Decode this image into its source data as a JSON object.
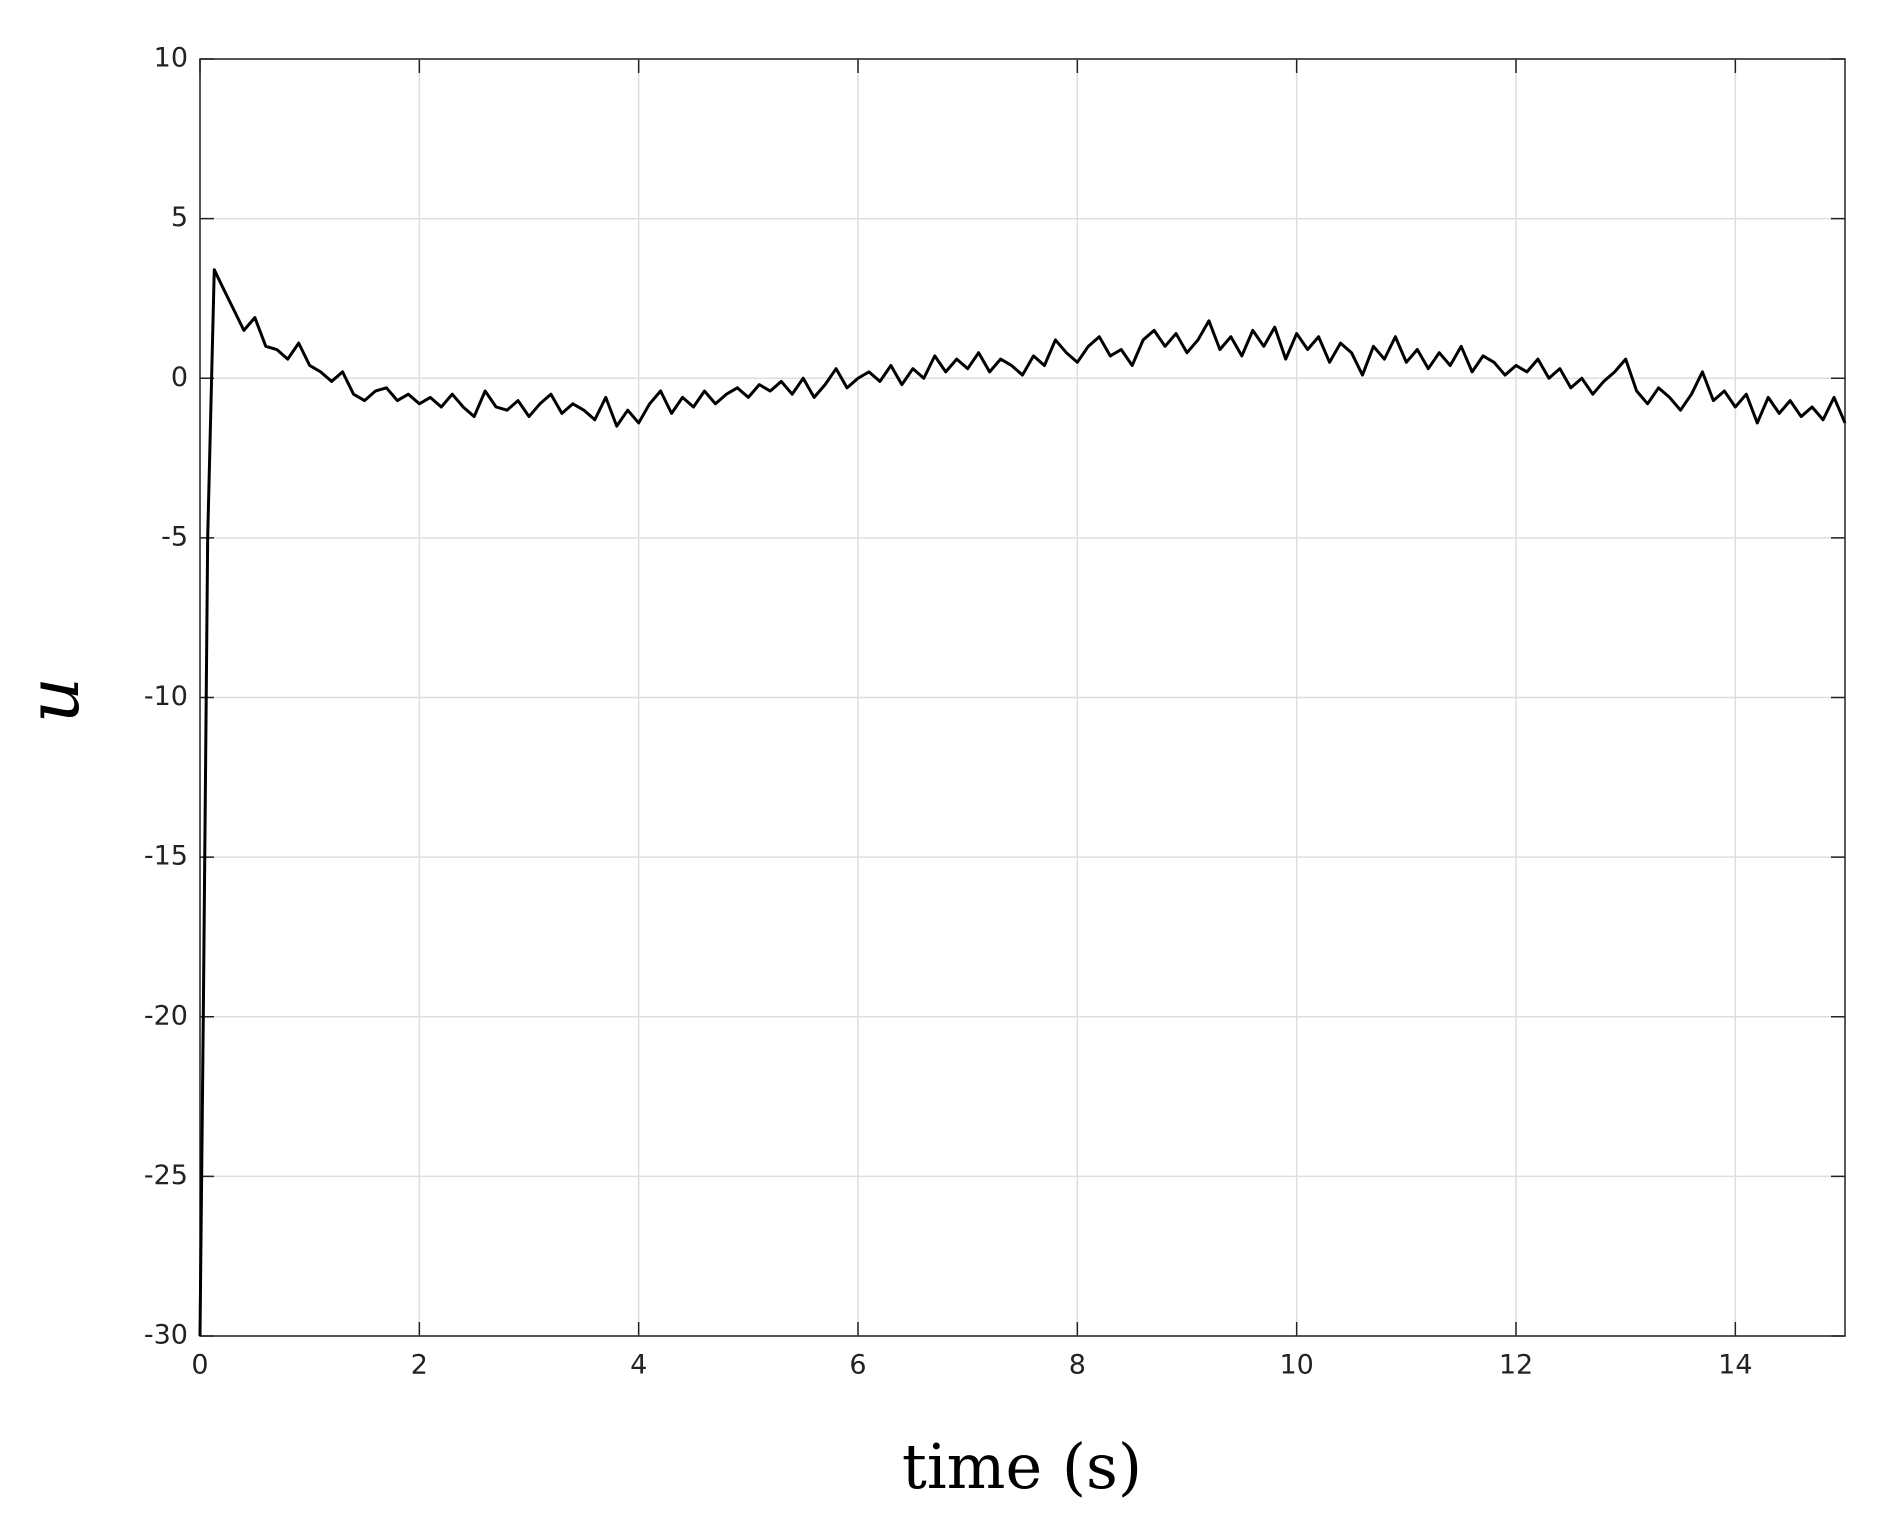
{
  "chart_data": {
    "type": "line",
    "xlabel": "time (s)",
    "ylabel": "u",
    "xlim": [
      0,
      15
    ],
    "ylim": [
      -30,
      10
    ],
    "xticks": [
      0,
      2,
      4,
      6,
      8,
      10,
      12,
      14
    ],
    "yticks": [
      -30,
      -25,
      -20,
      -15,
      -10,
      -5,
      0,
      5,
      10
    ],
    "grid": true,
    "series": [
      {
        "color": "#000000",
        "x": [
          0,
          0.03,
          0.07,
          0.13,
          0.2,
          0.3,
          0.4,
          0.5,
          0.6,
          0.7,
          0.8,
          0.9,
          1.0,
          1.1,
          1.2,
          1.3,
          1.4,
          1.5,
          1.6,
          1.7,
          1.8,
          1.9,
          2.0,
          2.1,
          2.2,
          2.3,
          2.4,
          2.5,
          2.6,
          2.7,
          2.8,
          2.9,
          3.0,
          3.1,
          3.2,
          3.3,
          3.4,
          3.5,
          3.6,
          3.7,
          3.8,
          3.9,
          4.0,
          4.1,
          4.2,
          4.3,
          4.4,
          4.5,
          4.6,
          4.7,
          4.8,
          4.9,
          5.0,
          5.1,
          5.2,
          5.3,
          5.4,
          5.5,
          5.6,
          5.7,
          5.8,
          5.9,
          6.0,
          6.1,
          6.2,
          6.3,
          6.4,
          6.5,
          6.6,
          6.7,
          6.8,
          6.9,
          7.0,
          7.1,
          7.2,
          7.3,
          7.4,
          7.5,
          7.6,
          7.7,
          7.8,
          7.9,
          8.0,
          8.1,
          8.2,
          8.3,
          8.4,
          8.5,
          8.6,
          8.7,
          8.8,
          8.9,
          9.0,
          9.1,
          9.2,
          9.3,
          9.4,
          9.5,
          9.6,
          9.7,
          9.8,
          9.9,
          10.0,
          10.1,
          10.2,
          10.3,
          10.4,
          10.5,
          10.6,
          10.7,
          10.8,
          10.9,
          11.0,
          11.1,
          11.2,
          11.3,
          11.4,
          11.5,
          11.6,
          11.7,
          11.8,
          11.9,
          12.0,
          12.1,
          12.2,
          12.3,
          12.4,
          12.5,
          12.6,
          12.7,
          12.8,
          12.9,
          13.0,
          13.1,
          13.2,
          13.3,
          13.4,
          13.5,
          13.6,
          13.7,
          13.8,
          13.9,
          14.0,
          14.1,
          14.2,
          14.3,
          14.4,
          14.5,
          14.6,
          14.7,
          14.8,
          14.9,
          15.0
        ],
        "values": [
          -30,
          -20,
          -5,
          3.4,
          2.9,
          2.2,
          1.5,
          1.9,
          1.0,
          0.9,
          0.6,
          1.1,
          0.4,
          0.2,
          -0.1,
          0.2,
          -0.5,
          -0.7,
          -0.4,
          -0.3,
          -0.7,
          -0.5,
          -0.8,
          -0.6,
          -0.9,
          -0.5,
          -0.9,
          -1.2,
          -0.4,
          -0.9,
          -1.0,
          -0.7,
          -1.2,
          -0.8,
          -0.5,
          -1.1,
          -0.8,
          -1.0,
          -1.3,
          -0.6,
          -1.5,
          -1.0,
          -1.4,
          -0.8,
          -0.4,
          -1.1,
          -0.6,
          -0.9,
          -0.4,
          -0.8,
          -0.5,
          -0.3,
          -0.6,
          -0.2,
          -0.4,
          -0.1,
          -0.5,
          0.0,
          -0.6,
          -0.2,
          0.3,
          -0.3,
          0.0,
          0.2,
          -0.1,
          0.4,
          -0.2,
          0.3,
          0.0,
          0.7,
          0.2,
          0.6,
          0.3,
          0.8,
          0.2,
          0.6,
          0.4,
          0.1,
          0.7,
          0.4,
          1.2,
          0.8,
          0.5,
          1.0,
          1.3,
          0.7,
          0.9,
          0.4,
          1.2,
          1.5,
          1.0,
          1.4,
          0.8,
          1.2,
          1.8,
          0.9,
          1.3,
          0.7,
          1.5,
          1.0,
          1.6,
          0.6,
          1.4,
          0.9,
          1.3,
          0.5,
          1.1,
          0.8,
          0.1,
          1.0,
          0.6,
          1.3,
          0.5,
          0.9,
          0.3,
          0.8,
          0.4,
          1.0,
          0.2,
          0.7,
          0.5,
          0.1,
          0.4,
          0.2,
          0.6,
          0.0,
          0.3,
          -0.3,
          0.0,
          -0.5,
          -0.1,
          0.2,
          0.6,
          -0.4,
          -0.8,
          -0.3,
          -0.6,
          -1.0,
          -0.5,
          0.2,
          -0.7,
          -0.4,
          -0.9,
          -0.5,
          -1.4,
          -0.6,
          -1.1,
          -0.7,
          -1.2,
          -0.9,
          -1.3,
          -0.6,
          -1.4
        ]
      }
    ]
  }
}
